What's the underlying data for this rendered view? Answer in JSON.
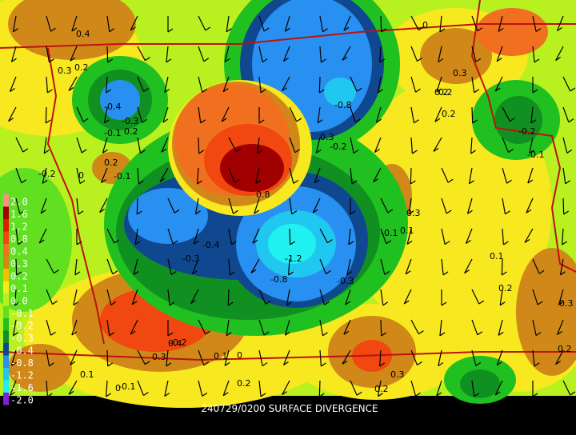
{
  "title": "240729/0200 SURFACE DIVERGENCE",
  "legend": {
    "entries": [
      {
        "label": "2.0",
        "color": "#ff8c8c"
      },
      {
        "label": "1.6",
        "color": "#a00000"
      },
      {
        "label": "1.2",
        "color": "#d82000"
      },
      {
        "label": "0.8",
        "color": "#f04810"
      },
      {
        "label": "0.4",
        "color": "#f07020"
      },
      {
        "label": "0.3",
        "color": "#d08818"
      },
      {
        "label": "0.2",
        "color": "#f0c000"
      },
      {
        "label": "0.1",
        "color": "#f8e820"
      },
      {
        "label": "0.0",
        "color": "#b8f020"
      },
      {
        "label": "-0.1",
        "color": "#60e020"
      },
      {
        "label": "-0.2",
        "color": "#20c020"
      },
      {
        "label": "-0.3",
        "color": "#109020"
      },
      {
        "label": "-0.4",
        "color": "#104890"
      },
      {
        "label": "-0.8",
        "color": "#2890f0"
      },
      {
        "label": "-1.2",
        "color": "#20c8f0"
      },
      {
        "label": "-1.6",
        "color": "#20f0f0"
      },
      {
        "label": "-2.0",
        "color": "#8020d0"
      }
    ]
  },
  "contour_labels": [
    "0.4",
    "0.3",
    "0.2",
    "-0.4",
    "-0.3",
    "-0.1",
    "0.2",
    "0.2",
    "-0.1",
    "-0.2",
    "0",
    "-0.8",
    "0.3",
    "-0.2",
    "0.8",
    "-1.2",
    "-0.8",
    "-0.4",
    "-0.3",
    "0.2",
    "0.4",
    "0.3",
    "0.1",
    "0",
    "-0.1",
    "0",
    "0.3",
    "0.2",
    "0.1",
    "-0.2",
    "-0.1",
    "0.1",
    "0.2",
    "0.3",
    "-0.1",
    "-0.2",
    "0.2",
    "-0.3",
    "0.3",
    "0.1",
    "0.2",
    "0",
    "0.2",
    "0.3",
    "0.2"
  ]
}
